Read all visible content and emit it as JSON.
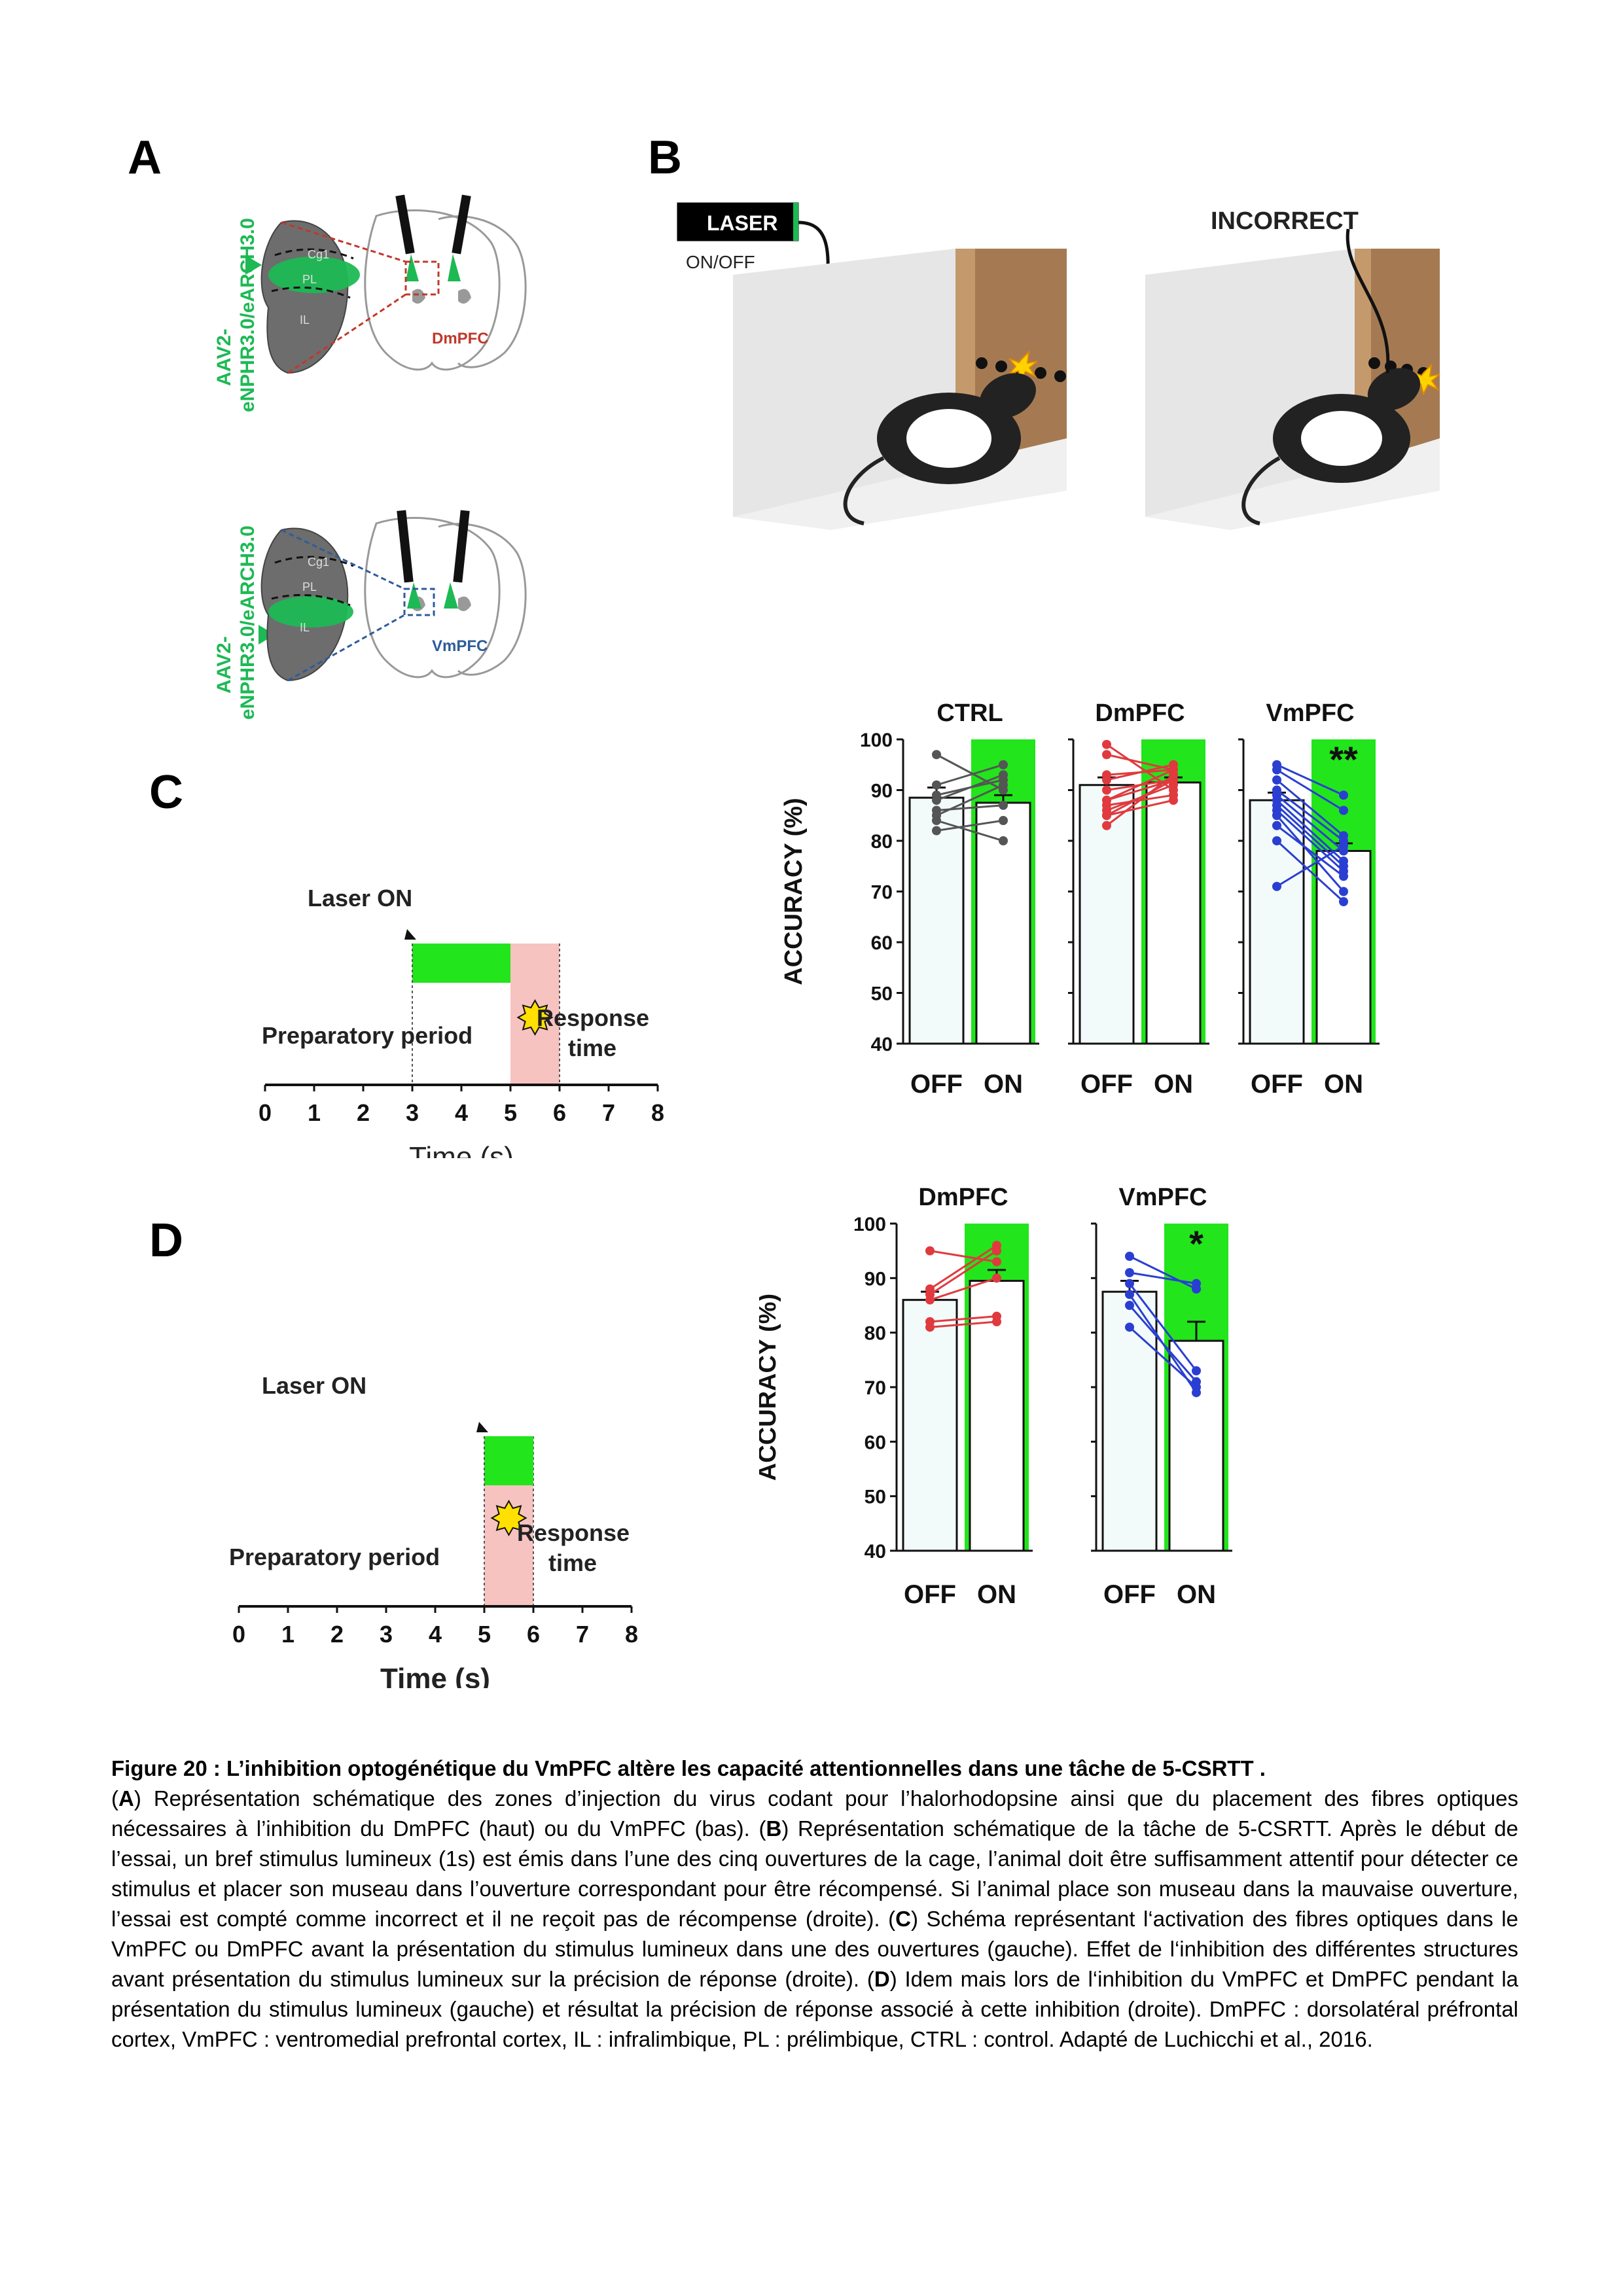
{
  "panels": {
    "a": "A",
    "b": "B",
    "c": "C",
    "d": "D"
  },
  "panel_a": {
    "virus_label_line1": "AAV2-",
    "virus_label_line2": "eNPHR3.0/eARCH3.0",
    "regions": [
      "Cg1",
      "PL",
      "IL"
    ],
    "top_target": "DmPFC",
    "bottom_target": "VmPFC",
    "colors": {
      "green": "#1db954",
      "dm_red": "#c0392b",
      "vm_blue": "#2e5c9a",
      "brain_gray": "#555555"
    }
  },
  "panel_b": {
    "laser_label": "LASER",
    "laser_switch": "ON/OFF",
    "incorrect_label": "INCORRECT"
  },
  "panel_c": {
    "timeline": {
      "laser_on": "Laser ON",
      "preparatory": "Preparatory period",
      "response_line1": "Response",
      "response_line2": "time",
      "xlabel": "Time (s)",
      "ticks": [
        "0",
        "1",
        "2",
        "3",
        "4",
        "5",
        "6",
        "7",
        "8"
      ],
      "laser_window": [
        3,
        5
      ],
      "stimulus_window": [
        5,
        6
      ]
    }
  },
  "panel_d": {
    "timeline": {
      "laser_on": "Laser ON",
      "preparatory": "Preparatory period",
      "response_line1": "Response",
      "response_line2": "time",
      "xlabel": "Time (s)",
      "ticks": [
        "0",
        "1",
        "2",
        "3",
        "4",
        "5",
        "6",
        "7",
        "8"
      ],
      "laser_window": [
        5,
        6
      ],
      "stimulus_window": [
        5,
        6
      ]
    }
  },
  "chart_data": [
    {
      "type": "bar",
      "panel": "C",
      "ylabel": "ACCURACY (%)",
      "ylim": [
        40,
        100
      ],
      "yticks": [
        40,
        50,
        60,
        70,
        80,
        90,
        100
      ],
      "groups": [
        {
          "name": "CTRL",
          "color": "#555555",
          "categories": [
            "OFF",
            "ON"
          ],
          "means": [
            88.5,
            87.5
          ],
          "sem": [
            2,
            1.5
          ],
          "sig": "",
          "paired": [
            [
              97,
              90
            ],
            [
              91,
              95
            ],
            [
              89,
              92
            ],
            [
              86,
              87
            ],
            [
              85,
              91
            ],
            [
              84,
              80
            ],
            [
              82,
              84
            ],
            [
              88,
              93
            ]
          ]
        },
        {
          "name": "DmPFC",
          "color": "#e03a3e",
          "categories": [
            "OFF",
            "ON"
          ],
          "means": [
            91,
            91.5
          ],
          "sem": [
            1.5,
            1
          ],
          "sig": "",
          "paired": [
            [
              99,
              90
            ],
            [
              97,
              94
            ],
            [
              93,
              94
            ],
            [
              92,
              95
            ],
            [
              90,
              92
            ],
            [
              88,
              94
            ],
            [
              87,
              89
            ],
            [
              86,
              91
            ],
            [
              85,
              92
            ],
            [
              83,
              93
            ],
            [
              85,
              88
            ],
            [
              88,
              92
            ]
          ]
        },
        {
          "name": "VmPFC",
          "color": "#2a3fd1",
          "categories": [
            "OFF",
            "ON"
          ],
          "means": [
            88,
            78
          ],
          "sem": [
            1.5,
            1.5
          ],
          "sig": "**",
          "paired": [
            [
              95,
              89
            ],
            [
              94,
              86
            ],
            [
              92,
              81
            ],
            [
              90,
              80
            ],
            [
              89,
              78
            ],
            [
              88,
              76
            ],
            [
              87,
              75
            ],
            [
              86,
              74
            ],
            [
              85,
              70
            ],
            [
              83,
              73
            ],
            [
              80,
              68
            ],
            [
              71,
              79
            ]
          ]
        }
      ],
      "laser_on_color": "#22e51c"
    },
    {
      "type": "bar",
      "panel": "D",
      "ylabel": "ACCURACY (%)",
      "ylim": [
        40,
        100
      ],
      "yticks": [
        40,
        50,
        60,
        70,
        80,
        90,
        100
      ],
      "groups": [
        {
          "name": "DmPFC",
          "color": "#e03a3e",
          "categories": [
            "OFF",
            "ON"
          ],
          "means": [
            86,
            89.5
          ],
          "sem": [
            1.5,
            2
          ],
          "sig": "",
          "paired": [
            [
              95,
              93
            ],
            [
              88,
              96
            ],
            [
              87,
              95
            ],
            [
              86,
              90
            ],
            [
              82,
              83
            ],
            [
              81,
              82
            ]
          ]
        },
        {
          "name": "VmPFC",
          "color": "#2a3fd1",
          "categories": [
            "OFF",
            "ON"
          ],
          "means": [
            87.5,
            78.5
          ],
          "sem": [
            2,
            3.5
          ],
          "sig": "*",
          "paired": [
            [
              94,
              88
            ],
            [
              91,
              89
            ],
            [
              89,
              73
            ],
            [
              85,
              71
            ],
            [
              81,
              70
            ],
            [
              87,
              69
            ]
          ]
        }
      ],
      "laser_on_color": "#22e51c"
    }
  ],
  "caption": {
    "title": "Figure 20 : L’inhibition optogénétique du VmPFC altère les capacité attentionnelles dans une tâche de 5-CSRTT .",
    "seg_open_a": "(",
    "letter_a": "A",
    "text_a": ") Représentation schématique des zones d’injection du virus codant pour l’halorhodopsine ainsi que du placement des fibres optiques nécessaires à l’inhibition du DmPFC (haut) ou du VmPFC (bas). (",
    "letter_b": "B",
    "text_b": ") Représentation schématique de la tâche de 5-CSRTT. Après le début de l’essai, un bref stimulus lumineux (1s) est émis dans l’une des cinq ouvertures de la cage, l’animal doit  être suffisamment attentif pour détecter ce stimulus et placer son museau dans l’ouverture correspondant pour être récompensé. Si l’animal place son museau dans la mauvaise ouverture, l’essai est compté comme incorrect et il ne reçoit pas de récompense (droite). (",
    "letter_c": "C",
    "text_c": ") Schéma représentant l‘activation des fibres optiques dans le VmPFC ou DmPFC avant la présentation du stimulus lumineux dans une des ouvertures (gauche). Effet de l‘inhibition des différentes structures avant présentation du stimulus lumineux sur la précision de réponse (droite). (",
    "letter_d": "D",
    "text_d": ") Idem mais lors de l‘inhibition du VmPFC et DmPFC pendant la présentation du stimulus lumineux (gauche) et résultat la précision de réponse associé à cette inhibition (droite). DmPFC : dorsolatéral préfrontal cortex, VmPFC : ventromedial prefrontal cortex, IL : infralimbique, PL : prélimbique, CTRL : control. Adapté de Luchicchi et al., 2016."
  }
}
